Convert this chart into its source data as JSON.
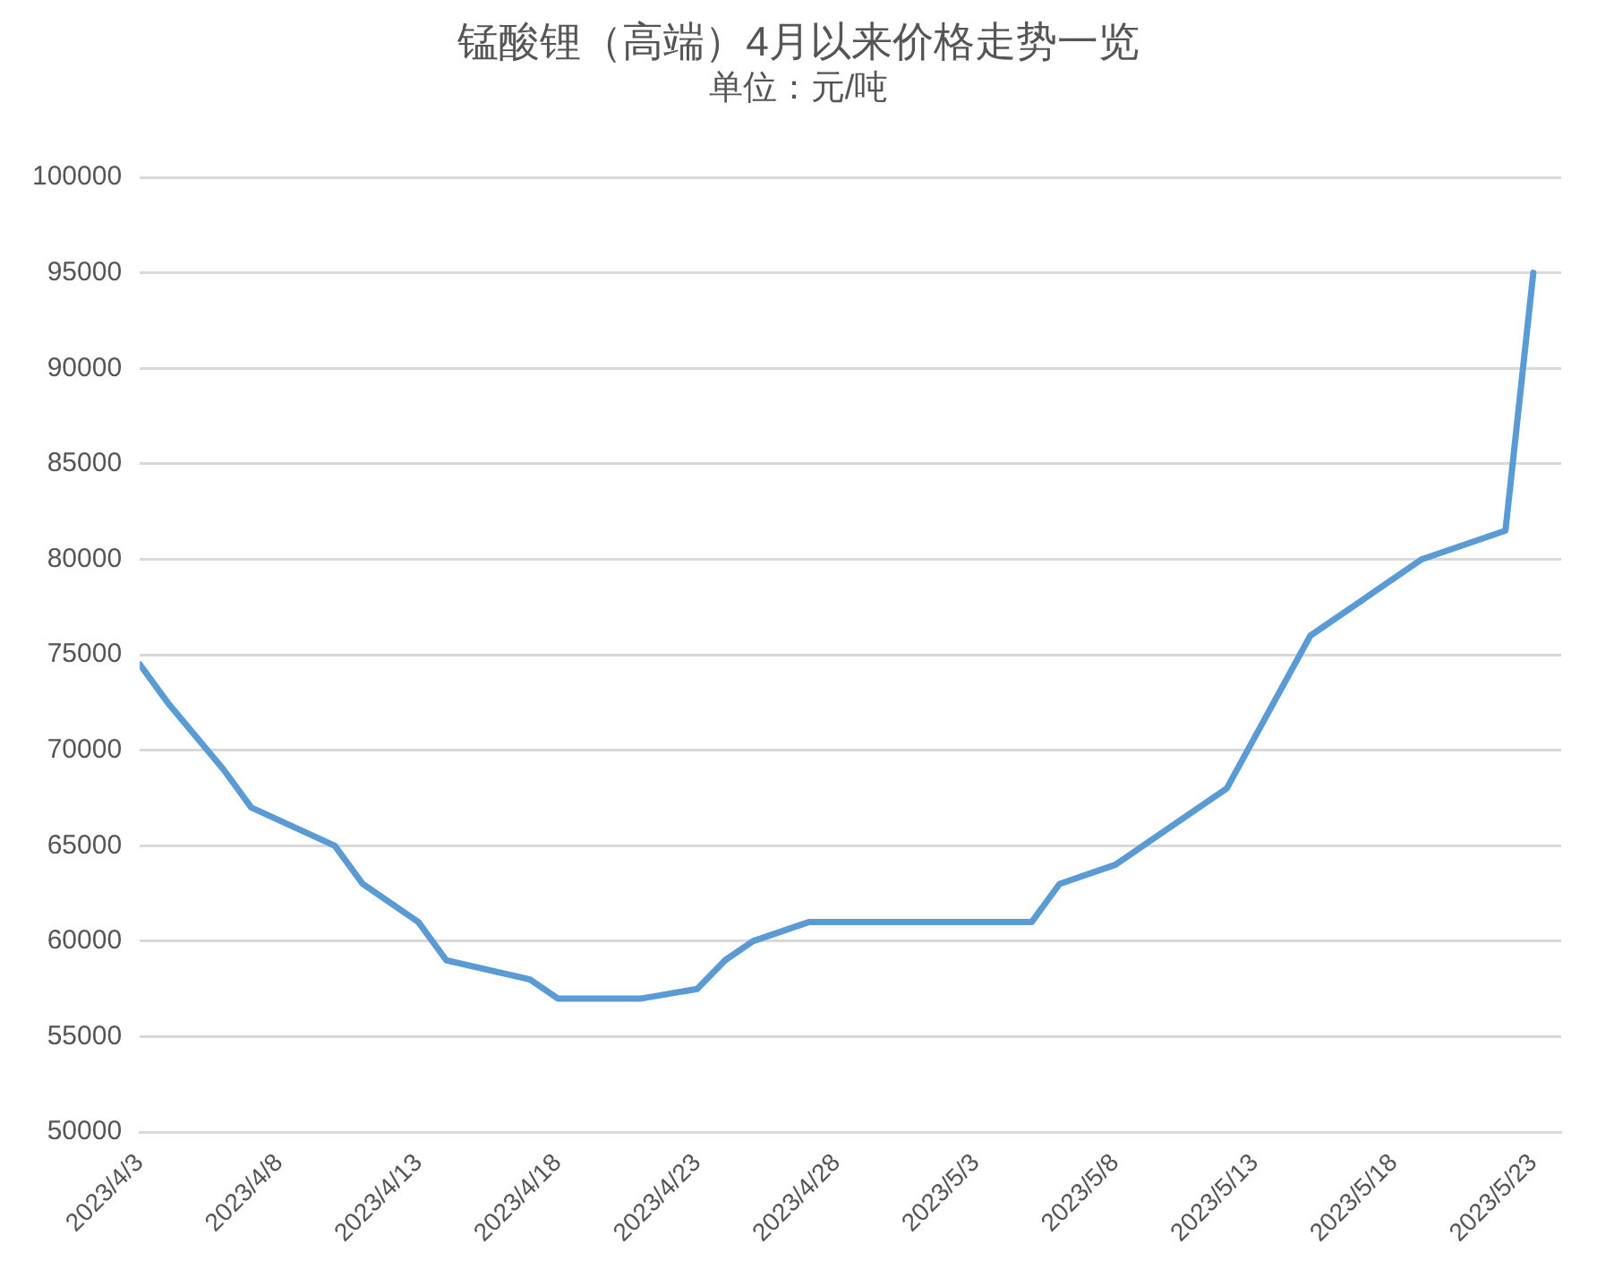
{
  "chart_data": {
    "type": "line",
    "title": "锰酸锂（高端）4月以来价格走势一览",
    "subtitle": "单位：元/吨",
    "x": [
      "2023-04-03",
      "2023-04-04",
      "2023-04-06",
      "2023-04-07",
      "2023-04-10",
      "2023-04-11",
      "2023-04-13",
      "2023-04-14",
      "2023-04-17",
      "2023-04-18",
      "2023-04-21",
      "2023-04-23",
      "2023-04-24",
      "2023-04-25",
      "2023-04-27",
      "2023-05-05",
      "2023-05-06",
      "2023-05-08",
      "2023-05-12",
      "2023-05-15",
      "2023-05-19",
      "2023-05-22",
      "2023-05-23"
    ],
    "series": [
      {
        "color": "#5b9bd5",
        "values": [
          74500,
          72500,
          69000,
          67000,
          65000,
          63000,
          61000,
          59000,
          58000,
          57000,
          57000,
          57500,
          59000,
          60000,
          61000,
          61000,
          63000,
          64000,
          68000,
          76000,
          80000,
          81500,
          95000
        ]
      }
    ],
    "xlim": [
      "2023-04-03",
      "2023-05-24"
    ],
    "xticks": [
      {
        "value": "2023-04-03",
        "label": "2023/4/3"
      },
      {
        "value": "2023-04-08",
        "label": "2023/4/8"
      },
      {
        "value": "2023-04-13",
        "label": "2023/4/13"
      },
      {
        "value": "2023-04-18",
        "label": "2023/4/18"
      },
      {
        "value": "2023-04-23",
        "label": "2023/4/23"
      },
      {
        "value": "2023-04-28",
        "label": "2023/4/28"
      },
      {
        "value": "2023-05-03",
        "label": "2023/5/3"
      },
      {
        "value": "2023-05-08",
        "label": "2023/5/8"
      },
      {
        "value": "2023-05-13",
        "label": "2023/5/13"
      },
      {
        "value": "2023-05-18",
        "label": "2023/5/18"
      },
      {
        "value": "2023-05-23",
        "label": "2023/5/23"
      }
    ],
    "ylim": [
      50000,
      100000
    ],
    "yticks": [
      50000,
      55000,
      60000,
      65000,
      70000,
      75000,
      80000,
      85000,
      90000,
      95000,
      100000
    ],
    "grid": "y",
    "legend": false,
    "marker": "none",
    "line_style": "solid"
  }
}
